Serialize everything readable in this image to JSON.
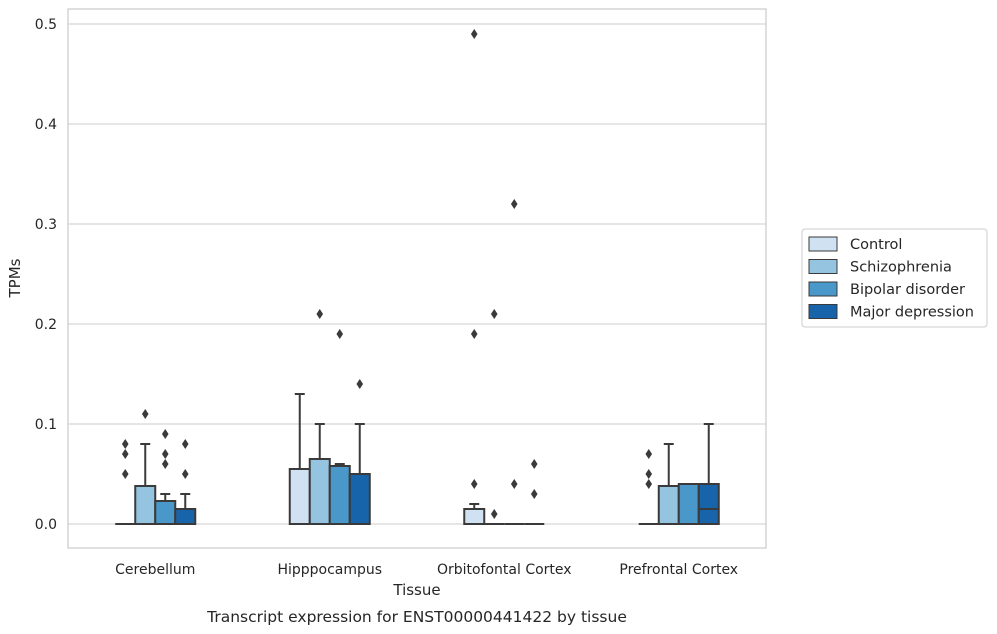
{
  "chart_data": {
    "type": "box",
    "xlabel": "Tissue",
    "ylabel": "TPMs",
    "caption": "Transcript expression for ENST00000441422 by tissue",
    "ylim": [
      -0.024,
      0.516
    ],
    "yticks": [
      0.0,
      0.1,
      0.2,
      0.3,
      0.4,
      0.5
    ],
    "ytick_labels": [
      "0.0",
      "0.1",
      "0.2",
      "0.3",
      "0.4",
      "0.5"
    ],
    "grid": "horizontal",
    "legend_placement": "right",
    "categories": [
      "Cerebellum",
      "Hipppocampus",
      "Orbitofontal Cortex",
      "Prefrontal Cortex"
    ],
    "series": [
      {
        "name": "Control",
        "color": "#d0e1f2",
        "boxes": [
          {
            "q1": 0.0,
            "median": 0.0,
            "q3": 0.0,
            "whisker_low": 0.0,
            "whisker_high": 0.0,
            "outliers": [
              0.05,
              0.07,
              0.08
            ]
          },
          {
            "q1": 0.0,
            "median": 0.0,
            "q3": 0.055,
            "whisker_low": 0.0,
            "whisker_high": 0.13,
            "outliers": []
          },
          {
            "q1": 0.0,
            "median": 0.0,
            "q3": 0.015,
            "whisker_low": 0.0,
            "whisker_high": 0.02,
            "outliers": [
              0.04,
              0.19,
              0.49
            ]
          },
          {
            "q1": 0.0,
            "median": 0.0,
            "q3": 0.0,
            "whisker_low": 0.0,
            "whisker_high": 0.0,
            "outliers": [
              0.04,
              0.05,
              0.07
            ]
          }
        ]
      },
      {
        "name": "Schizophrenia",
        "color": "#94c4df",
        "boxes": [
          {
            "q1": 0.0,
            "median": 0.0,
            "q3": 0.038,
            "whisker_low": 0.0,
            "whisker_high": 0.08,
            "outliers": [
              0.11
            ]
          },
          {
            "q1": 0.0,
            "median": 0.0,
            "q3": 0.065,
            "whisker_low": 0.0,
            "whisker_high": 0.1,
            "outliers": [
              0.21
            ]
          },
          {
            "q1": 0.0,
            "median": 0.0,
            "q3": 0.0,
            "whisker_low": 0.0,
            "whisker_high": 0.0,
            "outliers": [
              0.01,
              0.21
            ]
          },
          {
            "q1": 0.0,
            "median": 0.0,
            "q3": 0.038,
            "whisker_low": 0.0,
            "whisker_high": 0.08,
            "outliers": []
          }
        ]
      },
      {
        "name": "Bipolar disorder",
        "color": "#4a98c9",
        "boxes": [
          {
            "q1": 0.0,
            "median": 0.0,
            "q3": 0.023,
            "whisker_low": 0.0,
            "whisker_high": 0.03,
            "outliers": [
              0.06,
              0.07,
              0.09
            ]
          },
          {
            "q1": 0.0,
            "median": 0.0,
            "q3": 0.058,
            "whisker_low": 0.0,
            "whisker_high": 0.06,
            "outliers": [
              0.19
            ]
          },
          {
            "q1": 0.0,
            "median": 0.0,
            "q3": 0.0,
            "whisker_low": 0.0,
            "whisker_high": 0.0,
            "outliers": [
              0.04,
              0.32
            ]
          },
          {
            "q1": 0.0,
            "median": 0.0,
            "q3": 0.04,
            "whisker_low": 0.0,
            "whisker_high": 0.04,
            "outliers": []
          }
        ]
      },
      {
        "name": "Major depression",
        "color": "#1764ab",
        "boxes": [
          {
            "q1": 0.0,
            "median": 0.0,
            "q3": 0.015,
            "whisker_low": 0.0,
            "whisker_high": 0.03,
            "outliers": [
              0.05,
              0.08
            ]
          },
          {
            "q1": 0.0,
            "median": 0.0,
            "q3": 0.05,
            "whisker_low": 0.0,
            "whisker_high": 0.1,
            "outliers": [
              0.14
            ]
          },
          {
            "q1": 0.0,
            "median": 0.0,
            "q3": 0.0,
            "whisker_low": 0.0,
            "whisker_high": 0.0,
            "outliers": [
              0.03,
              0.06
            ]
          },
          {
            "q1": 0.0,
            "median": 0.015,
            "q3": 0.04,
            "whisker_low": 0.0,
            "whisker_high": 0.1,
            "outliers": []
          }
        ]
      }
    ]
  }
}
